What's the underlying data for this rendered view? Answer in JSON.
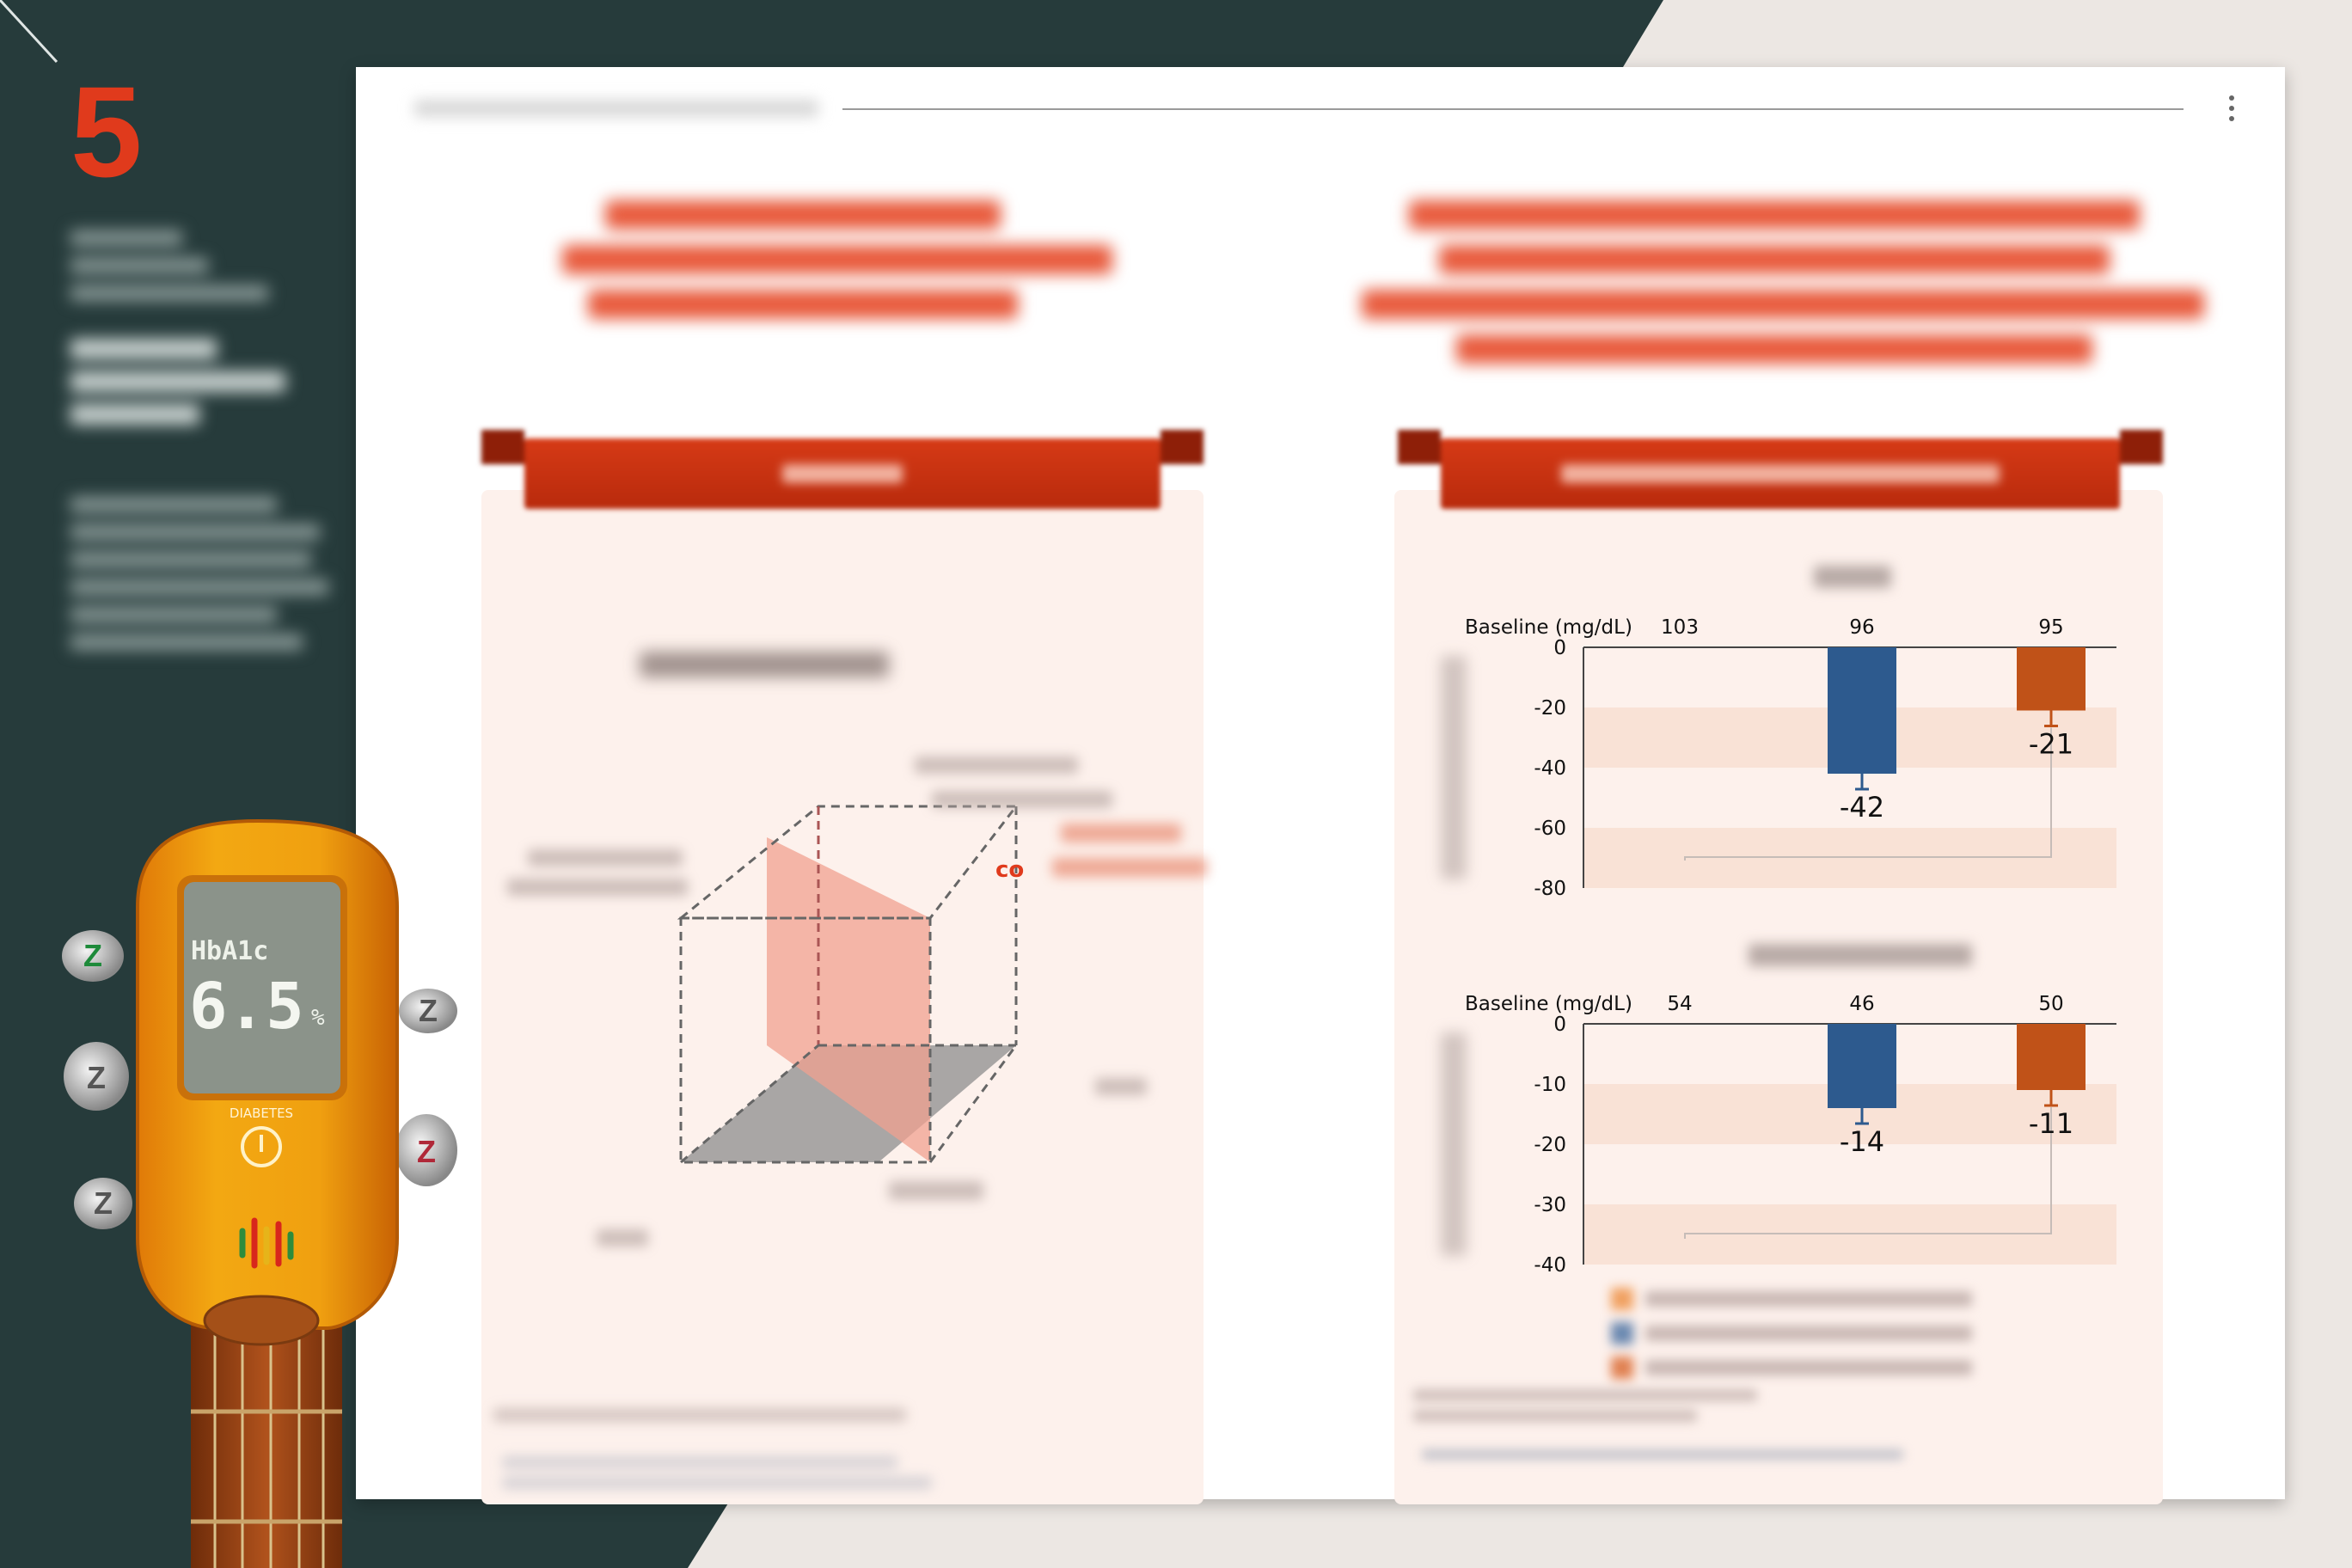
{
  "slide": {
    "number": "5"
  },
  "colors": {
    "dark_bg": "#263b3b",
    "accent": "#e03a1c",
    "blue": "#2d5a8e",
    "orange": "#c05218",
    "panel": "#fdf1ec"
  },
  "meter": {
    "label": "HbA1c",
    "value": "6.5",
    "unit": "%",
    "brand": "DIABETES",
    "icons": [
      "power-icon",
      "equalizer-icon"
    ]
  },
  "cube": {
    "partial_label": "co"
  },
  "charts": [
    {
      "type": "bar",
      "baseline_label": "Baseline (mg/dL)",
      "baselines": [
        "103",
        "96",
        "95"
      ],
      "ylim": [
        -80,
        0
      ],
      "yticks": [
        "0",
        "-20",
        "-40",
        "-60",
        "-80"
      ],
      "tick_values": [
        0,
        -20,
        -40,
        -60,
        -80
      ],
      "bars": [
        {
          "series": 1,
          "value": -42,
          "label": "-42",
          "color": "#2d5a8e"
        },
        {
          "series": 2,
          "value": -21,
          "label": "-21",
          "color": "#c05218"
        }
      ]
    },
    {
      "type": "bar",
      "baseline_label": "Baseline (mg/dL)",
      "baselines": [
        "54",
        "46",
        "50"
      ],
      "ylim": [
        -40,
        0
      ],
      "yticks": [
        "0",
        "-10",
        "-20",
        "-30",
        "-40"
      ],
      "tick_values": [
        0,
        -10,
        -20,
        -30,
        -40
      ],
      "bars": [
        {
          "series": 1,
          "value": -14,
          "label": "-14",
          "color": "#2d5a8e"
        },
        {
          "series": 2,
          "value": -11,
          "label": "-11",
          "color": "#c05218"
        }
      ]
    }
  ],
  "chart_data": [
    {
      "type": "bar",
      "categories": [
        "",
        ""
      ],
      "values": [
        -42,
        -21
      ],
      "baselines": [
        103,
        96,
        95
      ],
      "ylim": [
        -80,
        0
      ],
      "ylabel": ""
    },
    {
      "type": "bar",
      "categories": [
        "",
        ""
      ],
      "values": [
        -14,
        -11
      ],
      "baselines": [
        54,
        46,
        50
      ],
      "ylim": [
        -40,
        0
      ],
      "ylabel": ""
    }
  ]
}
